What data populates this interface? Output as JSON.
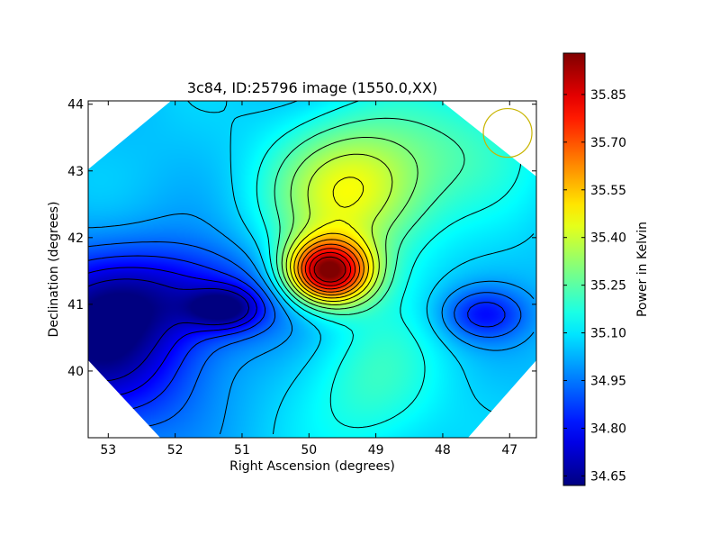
{
  "chart_data": {
    "type": "heatmap",
    "title": "3c84, ID:25796 image (1550.0,XX)",
    "xlabel": "Right Ascension (degrees)",
    "ylabel": "Declination (degrees)",
    "colorbar_label": "Power in Kelvin",
    "x_reversed": true,
    "xlim": [
      53.3,
      46.6
    ],
    "ylim": [
      39.0,
      44.05
    ],
    "x_ticks": [
      53,
      52,
      51,
      50,
      49,
      48,
      47
    ],
    "y_ticks": [
      40,
      41,
      42,
      43,
      44
    ],
    "x_tick_labels": [
      "53",
      "52",
      "51",
      "50",
      "49",
      "48",
      "47"
    ],
    "y_tick_labels": [
      "40",
      "41",
      "42",
      "43",
      "44"
    ],
    "colorbar_ticks": [
      34.65,
      34.8,
      34.95,
      35.1,
      35.25,
      35.4,
      35.55,
      35.7,
      35.85
    ],
    "colorbar_tick_labels": [
      "34.65",
      "34.80",
      "34.95",
      "35.10",
      "35.25",
      "35.40",
      "35.55",
      "35.70",
      "35.85"
    ],
    "value_range": [
      34.62,
      35.98
    ],
    "colormap": "jet",
    "coverage": "diamond",
    "contour_color": "#000000",
    "beam_marker": {
      "ra": 47.03,
      "dec": 43.57,
      "color": "#c8b400"
    },
    "features": [
      {
        "ra": 49.72,
        "dec": 41.48,
        "peak_value": 35.95,
        "kind": "maximum"
      },
      {
        "ra": 49.35,
        "dec": 42.7,
        "peak_value": 35.45,
        "kind": "ridge"
      },
      {
        "ra": 49.0,
        "dec": 39.8,
        "peak_value": 35.2,
        "kind": "ridge"
      },
      {
        "ra": 47.6,
        "dec": 43.4,
        "peak_value": 35.18,
        "kind": "ridge"
      },
      {
        "ra": 51.26,
        "dec": 40.93,
        "peak_value": 34.76,
        "kind": "minimum"
      },
      {
        "ra": 47.4,
        "dec": 40.85,
        "peak_value": 34.82,
        "kind": "minimum"
      },
      {
        "ra": 53.1,
        "dec": 40.4,
        "peak_value": 34.64,
        "kind": "minimum"
      },
      {
        "ra": 51.7,
        "dec": 41.15,
        "peak_value": 34.84,
        "kind": "minimum"
      }
    ]
  }
}
